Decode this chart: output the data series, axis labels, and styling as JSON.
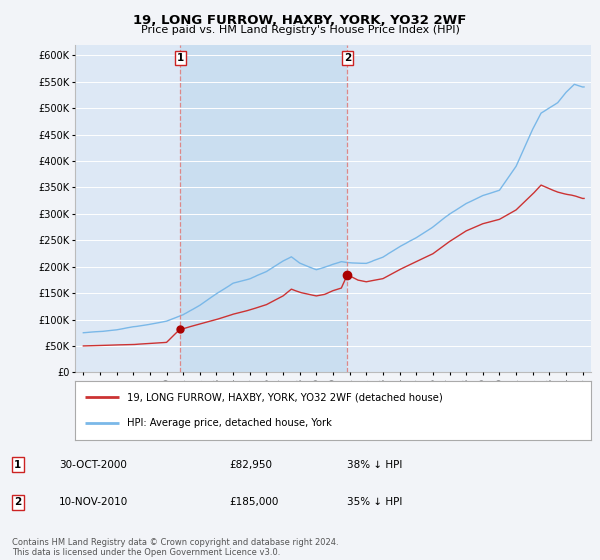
{
  "title": "19, LONG FURROW, HAXBY, YORK, YO32 2WF",
  "subtitle": "Price paid vs. HM Land Registry's House Price Index (HPI)",
  "ylim": [
    0,
    620000
  ],
  "yticks": [
    0,
    50000,
    100000,
    150000,
    200000,
    250000,
    300000,
    350000,
    400000,
    450000,
    500000,
    550000,
    600000
  ],
  "ytick_labels": [
    "£0",
    "£50K",
    "£100K",
    "£150K",
    "£200K",
    "£250K",
    "£300K",
    "£350K",
    "£400K",
    "£450K",
    "£500K",
    "£550K",
    "£600K"
  ],
  "hpi_color": "#7ab8e8",
  "price_color": "#cc3333",
  "vline_color": "#dd8888",
  "marker_color": "#aa0000",
  "background_color": "#f2f4f8",
  "plot_bg_color": "#dde8f5",
  "shade_color": "#c8ddf0",
  "grid_color": "#ffffff",
  "transaction1_x": 2000.83,
  "transaction1_price": 82950,
  "transaction1_date": "30-OCT-2000",
  "transaction1_label": "38% ↓ HPI",
  "transaction2_x": 2010.86,
  "transaction2_price": 185000,
  "transaction2_date": "10-NOV-2010",
  "transaction2_label": "35% ↓ HPI",
  "xlim": [
    1994.5,
    2025.5
  ],
  "xtick_years": [
    1995,
    1996,
    1997,
    1998,
    1999,
    2000,
    2001,
    2002,
    2003,
    2004,
    2005,
    2006,
    2007,
    2008,
    2009,
    2010,
    2011,
    2012,
    2013,
    2014,
    2015,
    2016,
    2017,
    2018,
    2019,
    2020,
    2021,
    2022,
    2023,
    2024,
    2025
  ],
  "footer": "Contains HM Land Registry data © Crown copyright and database right 2024.\nThis data is licensed under the Open Government Licence v3.0.",
  "legend_label1": "19, LONG FURROW, HAXBY, YORK, YO32 2WF (detached house)",
  "legend_label2": "HPI: Average price, detached house, York"
}
